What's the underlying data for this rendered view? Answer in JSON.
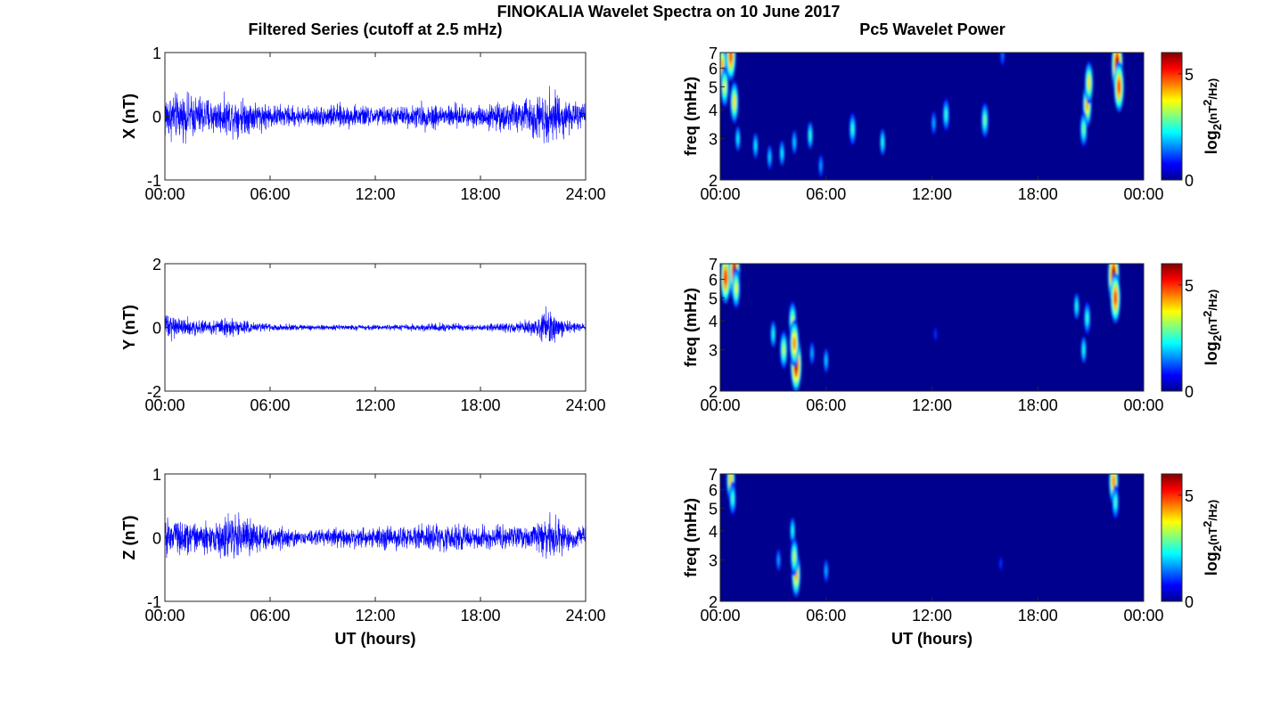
{
  "figure": {
    "title": "FINOKALIA Wavelet Spectra on 10 June 2017",
    "left_title": "Filtered Series (cutoff at 2.5 mHz)",
    "right_title": "Pc5 Wavelet Power"
  },
  "colors": {
    "trace": "#0000ff",
    "background": "#00008f",
    "frame": "#262626"
  },
  "chart_data": [
    {
      "type": "line",
      "panel": "X",
      "ylabel": "X (nT)",
      "xlabel": "",
      "ylim": [
        -1,
        1
      ],
      "yticks": [
        "-1",
        "0",
        "1"
      ],
      "xticks": [
        "00:00",
        "06:00",
        "12:00",
        "18:00",
        "24:00"
      ],
      "x_hours": [
        0,
        1,
        2,
        3,
        4,
        5,
        6,
        7,
        8,
        9,
        10,
        11,
        12,
        13,
        14,
        15,
        16,
        17,
        18,
        19,
        20,
        21,
        22,
        23,
        24
      ],
      "amplitude_envelope_nT": [
        0.45,
        0.4,
        0.38,
        0.32,
        0.35,
        0.3,
        0.22,
        0.2,
        0.18,
        0.2,
        0.22,
        0.2,
        0.18,
        0.18,
        0.2,
        0.25,
        0.22,
        0.22,
        0.2,
        0.25,
        0.28,
        0.38,
        0.5,
        0.3,
        0.2
      ]
    },
    {
      "type": "line",
      "panel": "Y",
      "ylabel": "Y (nT)",
      "xlabel": "",
      "ylim": [
        -2,
        2
      ],
      "yticks": [
        "-2",
        "0",
        "2"
      ],
      "xticks": [
        "00:00",
        "06:00",
        "12:00",
        "18:00",
        "24:00"
      ],
      "x_hours": [
        0,
        1,
        2,
        3,
        4,
        5,
        6,
        7,
        8,
        9,
        10,
        11,
        12,
        13,
        14,
        15,
        16,
        17,
        18,
        19,
        20,
        21,
        22,
        23,
        24
      ],
      "amplitude_envelope_nT": [
        0.5,
        0.35,
        0.25,
        0.3,
        0.35,
        0.2,
        0.15,
        0.12,
        0.1,
        0.1,
        0.1,
        0.1,
        0.1,
        0.1,
        0.12,
        0.15,
        0.15,
        0.12,
        0.12,
        0.15,
        0.2,
        0.3,
        0.7,
        0.2,
        0.15
      ]
    },
    {
      "type": "line",
      "panel": "Z",
      "ylabel": "Z (nT)",
      "xlabel": "UT (hours)",
      "ylim": [
        -1,
        1
      ],
      "yticks": [
        "-1",
        "0",
        "1"
      ],
      "xticks": [
        "00:00",
        "06:00",
        "12:00",
        "18:00",
        "24:00"
      ],
      "x_hours": [
        0,
        1,
        2,
        3,
        4,
        5,
        6,
        7,
        8,
        9,
        10,
        11,
        12,
        13,
        14,
        15,
        16,
        17,
        18,
        19,
        20,
        21,
        22,
        23,
        24
      ],
      "amplitude_envelope_nT": [
        0.35,
        0.3,
        0.28,
        0.3,
        0.45,
        0.3,
        0.22,
        0.18,
        0.12,
        0.15,
        0.2,
        0.18,
        0.18,
        0.2,
        0.2,
        0.22,
        0.25,
        0.22,
        0.2,
        0.22,
        0.2,
        0.2,
        0.45,
        0.22,
        0.2
      ]
    },
    {
      "type": "heatmap",
      "panel": "X",
      "ylabel": "freq (mHz)",
      "xlabel": "",
      "ylim": [
        2,
        7
      ],
      "yticks": [
        "2",
        "3",
        "4",
        "5",
        "6",
        "7"
      ],
      "xticks": [
        "00:00",
        "06:00",
        "12:00",
        "18:00",
        "00:00"
      ],
      "colorbar_label": "log2(nT^2/Hz)",
      "colorbar_ticks": [
        "0",
        "5"
      ],
      "clim": [
        0,
        6
      ],
      "blobs": [
        {
          "t": 0.1,
          "f": 6.2,
          "v": 4.2
        },
        {
          "t": 0.25,
          "f": 5.0,
          "v": 3.5
        },
        {
          "t": 0.8,
          "f": 4.3,
          "v": 3.8
        },
        {
          "t": 0.6,
          "f": 6.8,
          "v": 5.0
        },
        {
          "t": 1.0,
          "f": 3.0,
          "v": 2.0
        },
        {
          "t": 2.0,
          "f": 2.8,
          "v": 2.0
        },
        {
          "t": 2.8,
          "f": 2.5,
          "v": 1.8
        },
        {
          "t": 3.5,
          "f": 2.6,
          "v": 2.0
        },
        {
          "t": 4.2,
          "f": 2.9,
          "v": 1.8
        },
        {
          "t": 5.1,
          "f": 3.1,
          "v": 2.3
        },
        {
          "t": 5.7,
          "f": 2.3,
          "v": 1.5
        },
        {
          "t": 7.5,
          "f": 3.3,
          "v": 2.4
        },
        {
          "t": 9.2,
          "f": 2.9,
          "v": 2.2
        },
        {
          "t": 12.8,
          "f": 3.8,
          "v": 2.4
        },
        {
          "t": 12.1,
          "f": 3.5,
          "v": 1.6
        },
        {
          "t": 15.0,
          "f": 3.6,
          "v": 2.8
        },
        {
          "t": 16.0,
          "f": 6.8,
          "v": 1.2
        },
        {
          "t": 20.8,
          "f": 4.2,
          "v": 4.2
        },
        {
          "t": 20.9,
          "f": 5.2,
          "v": 3.8
        },
        {
          "t": 20.6,
          "f": 3.3,
          "v": 2.8
        },
        {
          "t": 22.5,
          "f": 6.2,
          "v": 6.0
        },
        {
          "t": 22.6,
          "f": 5.0,
          "v": 5.0
        }
      ]
    },
    {
      "type": "heatmap",
      "panel": "Y",
      "ylabel": "freq (mHz)",
      "xlabel": "",
      "ylim": [
        2,
        7
      ],
      "yticks": [
        "2",
        "3",
        "4",
        "5",
        "6",
        "7"
      ],
      "xticks": [
        "00:00",
        "06:00",
        "12:00",
        "18:00",
        "00:00"
      ],
      "colorbar_label": "log2(nT^2/Hz)",
      "colorbar_ticks": [
        "0",
        "5"
      ],
      "clim": [
        0,
        6
      ],
      "blobs": [
        {
          "t": 0.3,
          "f": 6.1,
          "v": 5.2
        },
        {
          "t": 0.8,
          "f": 6.5,
          "v": 5.8
        },
        {
          "t": 0.9,
          "f": 5.5,
          "v": 3.5
        },
        {
          "t": 3.0,
          "f": 3.5,
          "v": 2.2
        },
        {
          "t": 3.6,
          "f": 3.0,
          "v": 3.2
        },
        {
          "t": 4.1,
          "f": 4.0,
          "v": 3.2
        },
        {
          "t": 4.3,
          "f": 2.6,
          "v": 5.8
        },
        {
          "t": 4.2,
          "f": 3.2,
          "v": 4.5
        },
        {
          "t": 5.2,
          "f": 2.9,
          "v": 1.6
        },
        {
          "t": 6.0,
          "f": 2.7,
          "v": 1.8
        },
        {
          "t": 12.2,
          "f": 3.5,
          "v": 0.8
        },
        {
          "t": 20.2,
          "f": 4.6,
          "v": 2.2
        },
        {
          "t": 20.6,
          "f": 3.0,
          "v": 2.2
        },
        {
          "t": 20.8,
          "f": 4.1,
          "v": 2.4
        },
        {
          "t": 22.3,
          "f": 6.2,
          "v": 6.0
        },
        {
          "t": 22.4,
          "f": 5.0,
          "v": 5.0
        }
      ]
    },
    {
      "type": "heatmap",
      "panel": "Z",
      "ylabel": "freq (mHz)",
      "xlabel": "UT (hours)",
      "ylim": [
        2,
        7
      ],
      "yticks": [
        "2",
        "3",
        "4",
        "5",
        "6",
        "7"
      ],
      "xticks": [
        "00:00",
        "06:00",
        "12:00",
        "18:00",
        "00:00"
      ],
      "colorbar_label": "log2(nT^2/Hz)",
      "colorbar_ticks": [
        "0",
        "5"
      ],
      "clim": [
        0,
        6
      ],
      "blobs": [
        {
          "t": 0.6,
          "f": 6.6,
          "v": 4.0
        },
        {
          "t": 0.7,
          "f": 5.5,
          "v": 2.5
        },
        {
          "t": 3.3,
          "f": 3.0,
          "v": 1.5
        },
        {
          "t": 4.1,
          "f": 4.0,
          "v": 2.2
        },
        {
          "t": 4.3,
          "f": 2.6,
          "v": 4.2
        },
        {
          "t": 4.2,
          "f": 3.1,
          "v": 3.2
        },
        {
          "t": 6.0,
          "f": 2.7,
          "v": 1.6
        },
        {
          "t": 15.9,
          "f": 2.9,
          "v": 0.8
        },
        {
          "t": 22.3,
          "f": 6.5,
          "v": 4.5
        },
        {
          "t": 22.4,
          "f": 5.3,
          "v": 2.5
        }
      ]
    }
  ]
}
